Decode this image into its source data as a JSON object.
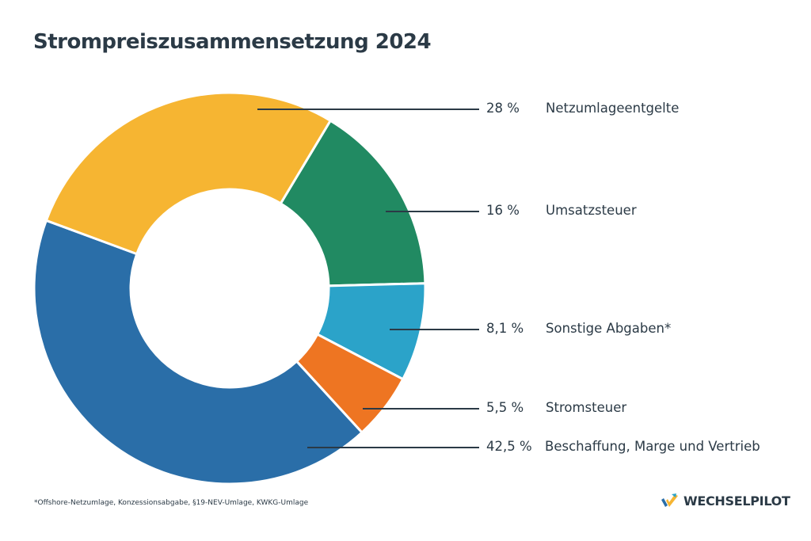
{
  "chart_data": {
    "type": "pie",
    "donut": true,
    "title": "Strompreiszusammensetzung 2024",
    "series": [
      {
        "name": "Umsatzsteuer",
        "value": 16,
        "label": "16 %",
        "color": "#218a62"
      },
      {
        "name": "Sonstige Abgaben*",
        "value": 8.1,
        "label": "8,1 %",
        "color": "#2ba3c9"
      },
      {
        "name": "Stromsteuer",
        "value": 5.5,
        "label": "5,5 %",
        "color": "#ee7522"
      },
      {
        "name": "Beschaffung, Marge und Vertrieb",
        "value": 42.5,
        "label": "42,5 %",
        "color": "#2a6ea8"
      },
      {
        "name": "Netzumlageentgelte",
        "value": 28,
        "label": "28 %",
        "color": "#f6b532"
      }
    ],
    "legend_placement": "right",
    "footnote": "*Offshore-Netzumlage, Konzessionsabgabe, §19-NEV-Umlage, KWKG-Umlage"
  },
  "brand": {
    "name": "WECHSELPILOT"
  }
}
